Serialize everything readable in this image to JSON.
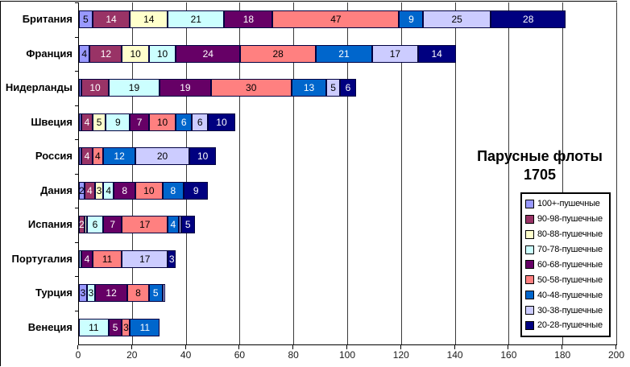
{
  "title": {
    "line1": "Парусные флоты",
    "line2": "1705"
  },
  "chart_data": {
    "type": "bar",
    "orientation": "horizontal",
    "stacked": true,
    "title": "Парусные флоты 1705",
    "xlabel": "",
    "ylabel": "",
    "xlim": [
      0,
      200
    ],
    "x_ticks": [
      0,
      20,
      40,
      60,
      80,
      100,
      120,
      140,
      160,
      180,
      200
    ],
    "grid": true,
    "legend_position": "right",
    "categories": [
      "Британия",
      "Франция",
      "Нидерланды",
      "Швеция",
      "Россия",
      "Дания",
      "Испания",
      "Португалия",
      "Турция",
      "Венеция"
    ],
    "series": [
      {
        "name": "100+-пушечные",
        "color": "#9999FF",
        "label_color": "#000000",
        "values": [
          5,
          4,
          1,
          1,
          1,
          2,
          0,
          0,
          3,
          0
        ]
      },
      {
        "name": "90-98-пушечные",
        "color": "#993366",
        "label_color": "#FFFFFF",
        "values": [
          14,
          12,
          10,
          4,
          4,
          4,
          2,
          0,
          0,
          0
        ]
      },
      {
        "name": "80-88-пушечные",
        "color": "#FFFFCC",
        "label_color": "#000000",
        "values": [
          14,
          10,
          0,
          5,
          0,
          3,
          1,
          0,
          0,
          0
        ]
      },
      {
        "name": "70-78-пушечные",
        "color": "#CCFFFF",
        "label_color": "#000000",
        "values": [
          21,
          10,
          19,
          9,
          0,
          4,
          6,
          1,
          3,
          11
        ]
      },
      {
        "name": "60-68-пушечные",
        "color": "#660066",
        "label_color": "#FFFFFF",
        "values": [
          18,
          24,
          19,
          7,
          0,
          8,
          7,
          4,
          12,
          5
        ]
      },
      {
        "name": "50-58-пушечные",
        "color": "#FF8080",
        "label_color": "#000000",
        "values": [
          47,
          28,
          30,
          10,
          4,
          10,
          17,
          11,
          8,
          3
        ]
      },
      {
        "name": "40-48-пушечные",
        "color": "#0066CC",
        "label_color": "#FFFFFF",
        "values": [
          9,
          21,
          13,
          6,
          12,
          8,
          4,
          0,
          5,
          11
        ]
      },
      {
        "name": "30-38-пушечные",
        "color": "#CCCCFF",
        "label_color": "#000000",
        "values": [
          25,
          17,
          5,
          6,
          20,
          0,
          1,
          17,
          1,
          0
        ]
      },
      {
        "name": "20-28-пушечные",
        "color": "#000080",
        "label_color": "#FFFFFF",
        "values": [
          28,
          14,
          6,
          10,
          10,
          9,
          5,
          3,
          0,
          0
        ]
      }
    ]
  }
}
